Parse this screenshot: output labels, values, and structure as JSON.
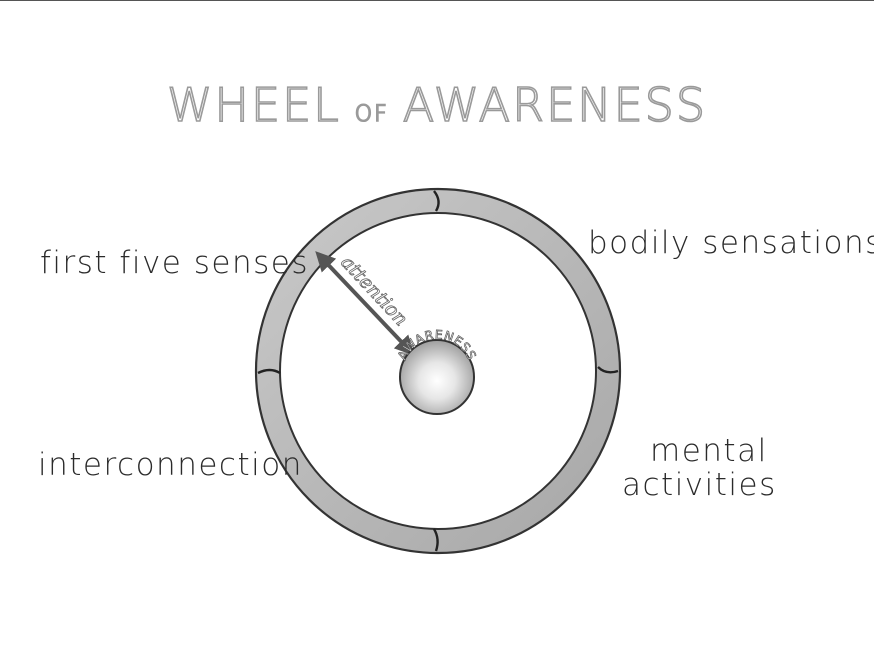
{
  "title": {
    "word1": "WHEEL",
    "word2": "OF",
    "word3": "AWARENESS"
  },
  "rim_labels": {
    "first_five_senses": "first five senses",
    "bodily_sensations": "bodily sensations",
    "interconnection": "interconnection",
    "mental_line1": "mental",
    "mental_line2": "activities"
  },
  "spoke_label": "attention",
  "hub_label": "AWARENESS",
  "colors": {
    "rim_fill": "#bdbdbd",
    "rim_outline": "#333333",
    "arrow": "#555555",
    "label_text": "#2a2a2a",
    "title_outline": "#9a9a9a"
  }
}
